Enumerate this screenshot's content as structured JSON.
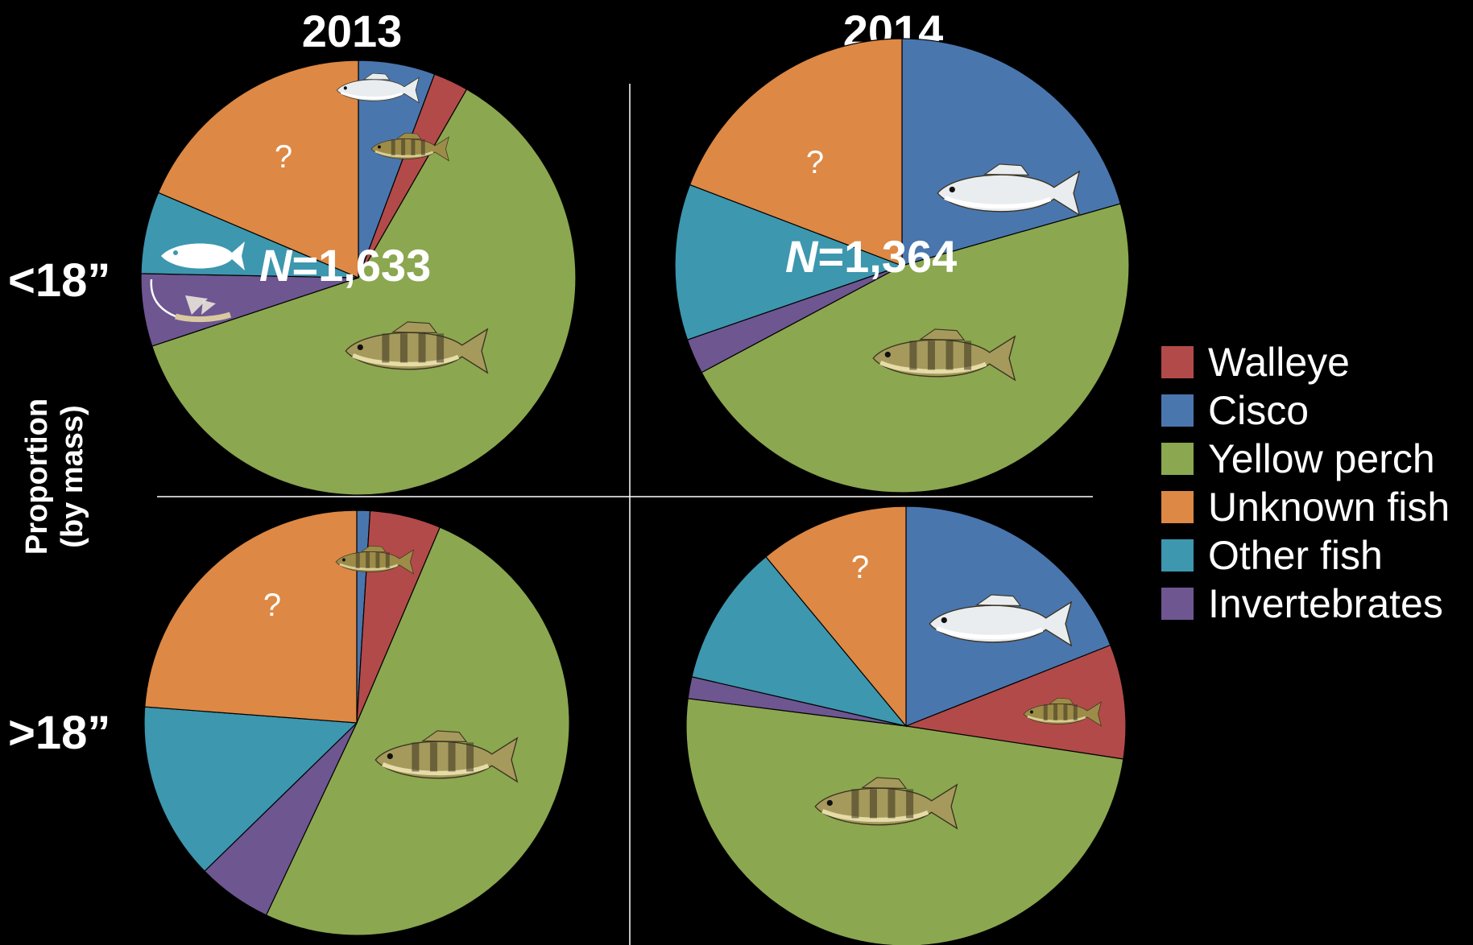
{
  "colors": {
    "Walleye": "#b24a4a",
    "Cisco": "#4a76ae",
    "Yellow perch": "#8ba750",
    "Unknown fish": "#dd8844",
    "Other fish": "#3d97ae",
    "Invertebrates": "#6e5691",
    "background": "#000000",
    "divider": "#ffffff"
  },
  "column_titles": [
    "2013",
    "2014"
  ],
  "row_labels": [
    "<18”",
    ">18”"
  ],
  "axis_label": [
    "Proportion",
    "(by mass)"
  ],
  "legend": [
    "Walleye",
    "Cisco",
    "Yellow perch",
    "Unknown fish",
    "Other fish",
    "Invertebrates"
  ],
  "chart_data": [
    {
      "type": "pie",
      "year": "2013",
      "size_class": "<18”",
      "n_label": "N=1,633",
      "slices": [
        {
          "label": "Cisco",
          "value": 5.7
        },
        {
          "label": "Walleye",
          "value": 2.6
        },
        {
          "label": "Yellow perch",
          "value": 61.6
        },
        {
          "label": "Invertebrates",
          "value": 5.4
        },
        {
          "label": "Other fish",
          "value": 6.1
        },
        {
          "label": "Unknown fish",
          "value": 18.6
        }
      ],
      "unknown_mark": "?",
      "icons": [
        "cisco-icon",
        "walleye-icon",
        "other-fish-icon",
        "mayfly-icon",
        "yellow-perch-icon"
      ]
    },
    {
      "type": "pie",
      "year": "2014",
      "size_class": "<18”",
      "n_label": "N=1,364",
      "slices": [
        {
          "label": "Cisco",
          "value": 20.6
        },
        {
          "label": "Walleye",
          "value": 0
        },
        {
          "label": "Yellow perch",
          "value": 46.6
        },
        {
          "label": "Invertebrates",
          "value": 2.5
        },
        {
          "label": "Other fish",
          "value": 11.1
        },
        {
          "label": "Unknown fish",
          "value": 19.2
        }
      ],
      "unknown_mark": "?",
      "icons": [
        "cisco-icon",
        "yellow-perch-icon"
      ]
    },
    {
      "type": "pie",
      "year": "2013",
      "size_class": ">18”",
      "n_label": "",
      "slices": [
        {
          "label": "Cisco",
          "value": 1.0
        },
        {
          "label": "Walleye",
          "value": 5.4
        },
        {
          "label": "Yellow perch",
          "value": 50.6
        },
        {
          "label": "Invertebrates",
          "value": 5.7
        },
        {
          "label": "Other fish",
          "value": 13.5
        },
        {
          "label": "Unknown fish",
          "value": 23.8
        }
      ],
      "unknown_mark": "?",
      "icons": [
        "walleye-icon",
        "yellow-perch-icon"
      ]
    },
    {
      "type": "pie",
      "year": "2014",
      "size_class": ">18”",
      "n_label": "",
      "slices": [
        {
          "label": "Cisco",
          "value": 19.0
        },
        {
          "label": "Walleye",
          "value": 8.4
        },
        {
          "label": "Yellow perch",
          "value": 49.6
        },
        {
          "label": "Invertebrates",
          "value": 1.6
        },
        {
          "label": "Other fish",
          "value": 10.4
        },
        {
          "label": "Unknown fish",
          "value": 11.0
        }
      ],
      "unknown_mark": "?",
      "icons": [
        "cisco-icon",
        "walleye-icon",
        "yellow-perch-icon"
      ]
    }
  ]
}
